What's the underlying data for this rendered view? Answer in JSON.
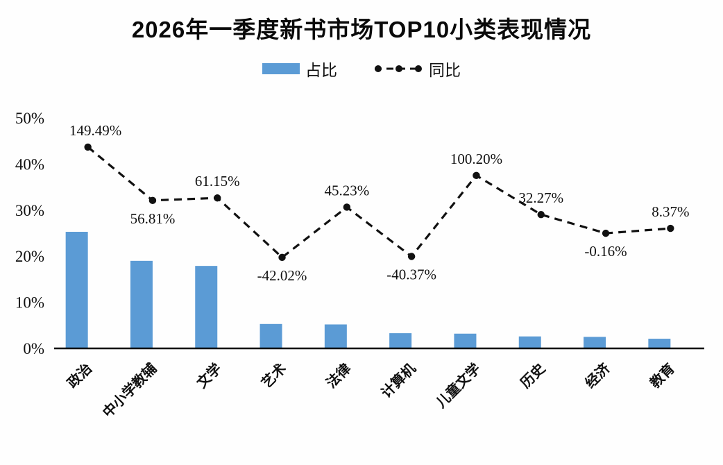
{
  "title": "2026年一季度新书市场TOP10小类表现情况",
  "legend": {
    "bar_label": "占比",
    "line_label": "同比"
  },
  "colors": {
    "bar": "#5b9bd5",
    "line": "#111111",
    "axis": "#000000"
  },
  "chart_data": {
    "type": "bar+line",
    "title": "2026年一季度新书市场TOP10小类表现情况",
    "categories": [
      "政治",
      "中小学教辅",
      "文学",
      "艺术",
      "法律",
      "计算机",
      "儿童文学",
      "历史",
      "经济",
      "教育"
    ],
    "series": [
      {
        "name": "占比",
        "type": "bar",
        "axis": "left",
        "color": "#5b9bd5",
        "values": [
          25.3,
          19.0,
          17.9,
          5.3,
          5.2,
          3.3,
          3.2,
          2.6,
          2.5,
          2.1
        ]
      },
      {
        "name": "同比",
        "type": "line",
        "axis": "right",
        "dashed": true,
        "color": "#111111",
        "values": [
          149.49,
          56.81,
          61.15,
          -42.02,
          45.23,
          -40.37,
          100.2,
          32.27,
          -0.16,
          8.37
        ],
        "data_labels": [
          "149.49%",
          "56.81%",
          "61.15%",
          "-42.02%",
          "45.23%",
          "-40.37%",
          "100.20%",
          "32.27%",
          "-0.16%",
          "8.37%"
        ],
        "label_side": [
          "above",
          "below",
          "above",
          "below",
          "above",
          "below",
          "above",
          "above",
          "below",
          "above"
        ]
      }
    ],
    "left_axis": {
      "tick_labels": [
        "0%",
        "10%",
        "20%",
        "30%",
        "40%",
        "50%"
      ],
      "tick_values": [
        0,
        10,
        20,
        30,
        40,
        50
      ],
      "range": [
        0,
        50
      ]
    },
    "right_axis": {
      "visible": false,
      "range": [
        -200,
        200
      ]
    },
    "grid": false,
    "legend_position": "top"
  }
}
